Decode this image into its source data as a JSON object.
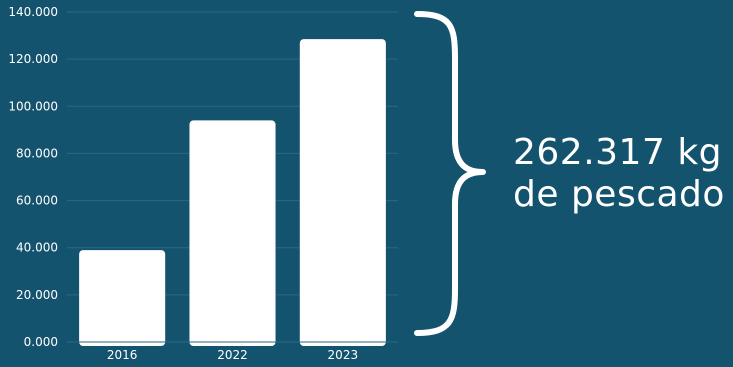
{
  "colors": {
    "background": "#14536e",
    "bar": "#ffffff",
    "text": "#ffffff",
    "grid": "#2a6782"
  },
  "chart_data": {
    "type": "bar",
    "categories": [
      "2016",
      "2022",
      "2023"
    ],
    "values": [
      39000,
      94000,
      128500
    ],
    "title": "",
    "xlabel": "",
    "ylabel": "",
    "ylim": [
      0,
      140000
    ],
    "y_ticks": [
      "0.000",
      "20.000",
      "40.000",
      "60.000",
      "80.000",
      "100.000",
      "120.000",
      "140.000"
    ],
    "grid": true,
    "legend": "none"
  },
  "callout": {
    "line1": "262.317 kg",
    "line2": "de pescado"
  }
}
